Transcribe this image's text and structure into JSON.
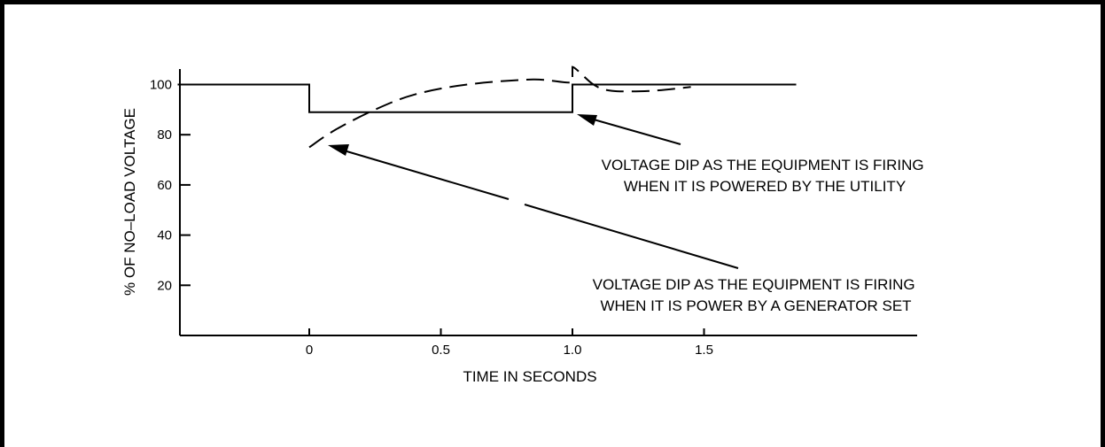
{
  "chart_data": {
    "type": "line",
    "xlabel": "TIME IN SECONDS",
    "ylabel": "% OF NO–LOAD VOLTAGE",
    "x_ticks": [
      0,
      0.5,
      1.0,
      1.5
    ],
    "x_tick_labels": [
      "0",
      "0.5",
      "1.0",
      "1.5"
    ],
    "y_ticks": [
      20,
      40,
      60,
      80,
      100
    ],
    "y_tick_labels": [
      "20",
      "40",
      "60",
      "80",
      "100"
    ],
    "xlim": [
      -0.5,
      2.35
    ],
    "ylim": [
      0,
      106
    ],
    "grid": false,
    "legend": "none",
    "series": [
      {
        "style": "solid",
        "points": [
          [
            -0.5,
            100
          ],
          [
            0,
            100
          ],
          [
            0,
            89
          ],
          [
            1.0,
            89
          ],
          [
            1.0,
            100
          ],
          [
            1.85,
            100
          ]
        ]
      },
      {
        "style": "dashed",
        "points": [
          [
            0,
            75
          ],
          [
            0.1,
            82
          ],
          [
            0.25,
            90
          ],
          [
            0.4,
            96
          ],
          [
            0.6,
            100
          ],
          [
            0.85,
            102
          ],
          [
            1.0,
            101
          ],
          [
            1.0,
            107
          ],
          [
            1.08,
            100
          ],
          [
            1.15,
            97.5
          ],
          [
            1.3,
            97.5
          ],
          [
            1.45,
            99
          ]
        ]
      }
    ],
    "annotations": [
      {
        "lines": [
          "VOLTAGE DIP AS THE EQUIPMENT IS FIRING",
          "WHEN IT IS POWERED BY THE UTILITY"
        ],
        "arrow_to": [
          1.0,
          89
        ]
      },
      {
        "lines": [
          "VOLTAGE DIP AS THE EQUIPMENT IS FIRING",
          "WHEN IT IS POWER BY A GENERATOR SET"
        ],
        "arrow_to": [
          0.1,
          75
        ]
      }
    ]
  }
}
